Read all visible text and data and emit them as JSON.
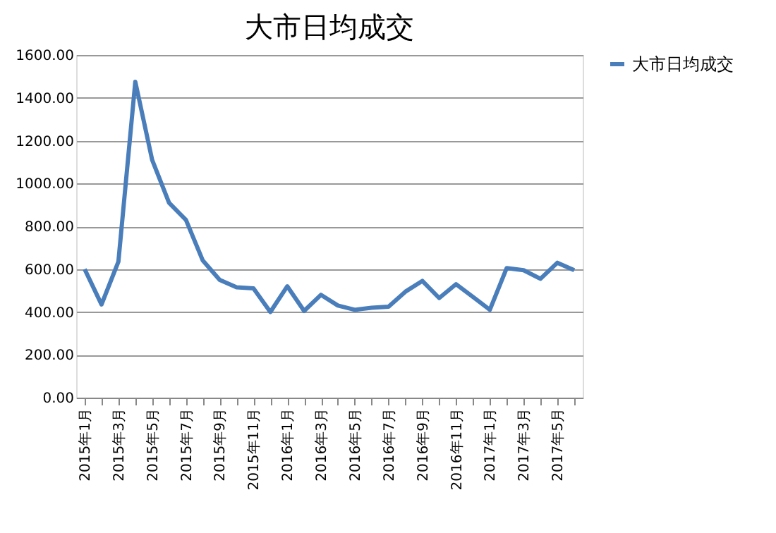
{
  "chart_data": {
    "type": "line",
    "title": "大市日均成交",
    "categories": [
      "2015年1月",
      null,
      "2015年3月",
      null,
      "2015年5月",
      null,
      "2015年7月",
      null,
      "2015年9月",
      null,
      "2015年11月",
      null,
      "2016年1月",
      null,
      "2016年3月",
      null,
      "2016年5月",
      null,
      "2016年7月",
      null,
      "2016年9月",
      null,
      "2016年11月",
      null,
      "2017年1月",
      null,
      "2017年3月",
      null,
      "2017年5月",
      null
    ],
    "series": [
      {
        "name": "大市日均成交",
        "color": "#4a7ebb",
        "values": [
          600,
          435,
          635,
          1475,
          1110,
          910,
          830,
          640,
          550,
          515,
          510,
          400,
          520,
          405,
          480,
          430,
          410,
          420,
          425,
          495,
          545,
          465,
          530,
          470,
          410,
          605,
          595,
          555,
          630,
          595
        ]
      }
    ],
    "ylim": [
      0,
      1600
    ],
    "yticks": [
      {
        "value": 0,
        "label": "0.00"
      },
      {
        "value": 200,
        "label": "200.00"
      },
      {
        "value": 400,
        "label": "400.00"
      },
      {
        "value": 600,
        "label": "600.00"
      },
      {
        "value": 800,
        "label": "800.00"
      },
      {
        "value": 1000,
        "label": "1000.00"
      },
      {
        "value": 1200,
        "label": "1200.00"
      },
      {
        "value": 1400,
        "label": "1400.00"
      },
      {
        "value": 1600,
        "label": "1600.00"
      }
    ],
    "grid": "y",
    "legend": "right",
    "marker": "none",
    "line_style": "solid"
  }
}
